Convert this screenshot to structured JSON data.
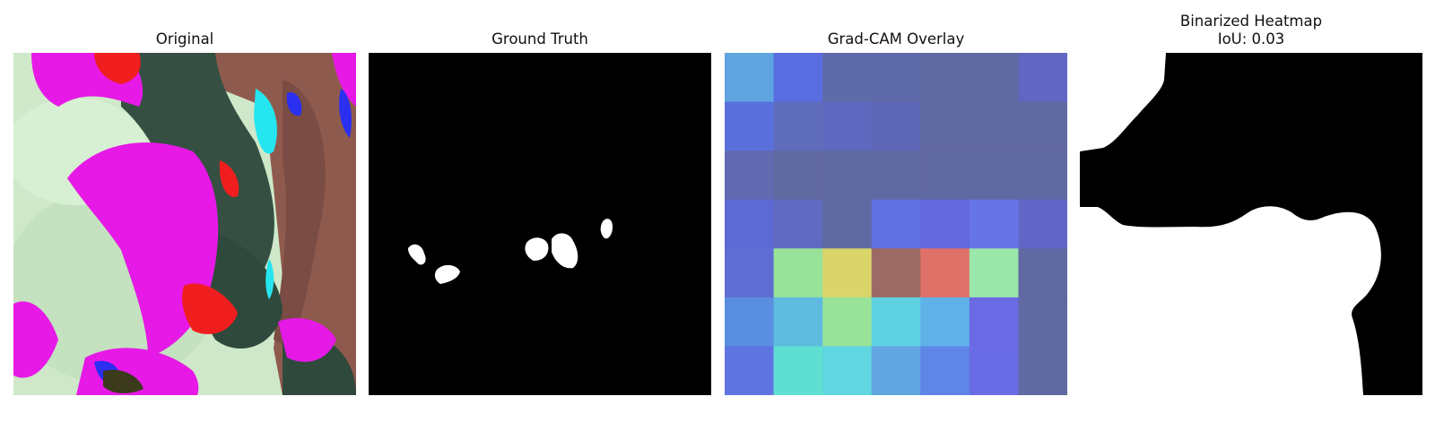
{
  "panels": [
    {
      "title": "Original"
    },
    {
      "title": "Ground Truth"
    },
    {
      "title": "Grad-CAM Overlay"
    },
    {
      "title": "Binarized Heatmap",
      "subtitle": "IoU: 0.03"
    }
  ],
  "gradcam": {
    "grid_rows": 7,
    "grid_cols": 7,
    "cell_colors": [
      [
        "#5fa4e0",
        "#5a6de0",
        "#5f6aa8",
        "#5f6aa8",
        "#6169a3",
        "#6169a3",
        "#6166c2"
      ],
      [
        "#5970dc",
        "#5f6cbc",
        "#5e69bf",
        "#5f67b8",
        "#6169a3",
        "#6169a3",
        "#6169a3"
      ],
      [
        "#6169b0",
        "#6169a3",
        "#6169a3",
        "#6169a3",
        "#6169a3",
        "#6169a3",
        "#6169a3"
      ],
      [
        "#5d6ad4",
        "#5f6ac0",
        "#6169a3",
        "#5e70e2",
        "#6468dc",
        "#6774e6",
        "#6166c8"
      ],
      [
        "#5f6cd4",
        "#98e29a",
        "#dad56a",
        "#9c6964",
        "#e07169",
        "#9be6aa",
        "#6169a3"
      ],
      [
        "#5a8ee0",
        "#5fbae0",
        "#98e29a",
        "#5fd2e2",
        "#5fb2e8",
        "#6a6ae4",
        "#6169a3"
      ],
      [
        "#5f74e0",
        "#5fdfd2",
        "#5fd6e0",
        "#62a6e4",
        "#5f86e6",
        "#6a6ce6",
        "#6169a3"
      ]
    ]
  },
  "colors": {
    "background": "#ffffff",
    "title_text": "#111111",
    "mask_background": "#000000",
    "mask_foreground": "#ffffff",
    "leaf_light": "#cfe8c9",
    "leaf_magenta": "#e619e6",
    "leaf_red": "#f01e1e",
    "leaf_dark": "#355043",
    "skin": "#8f5a4e",
    "cyan": "#25e5f0",
    "blue": "#2a2ff0"
  }
}
